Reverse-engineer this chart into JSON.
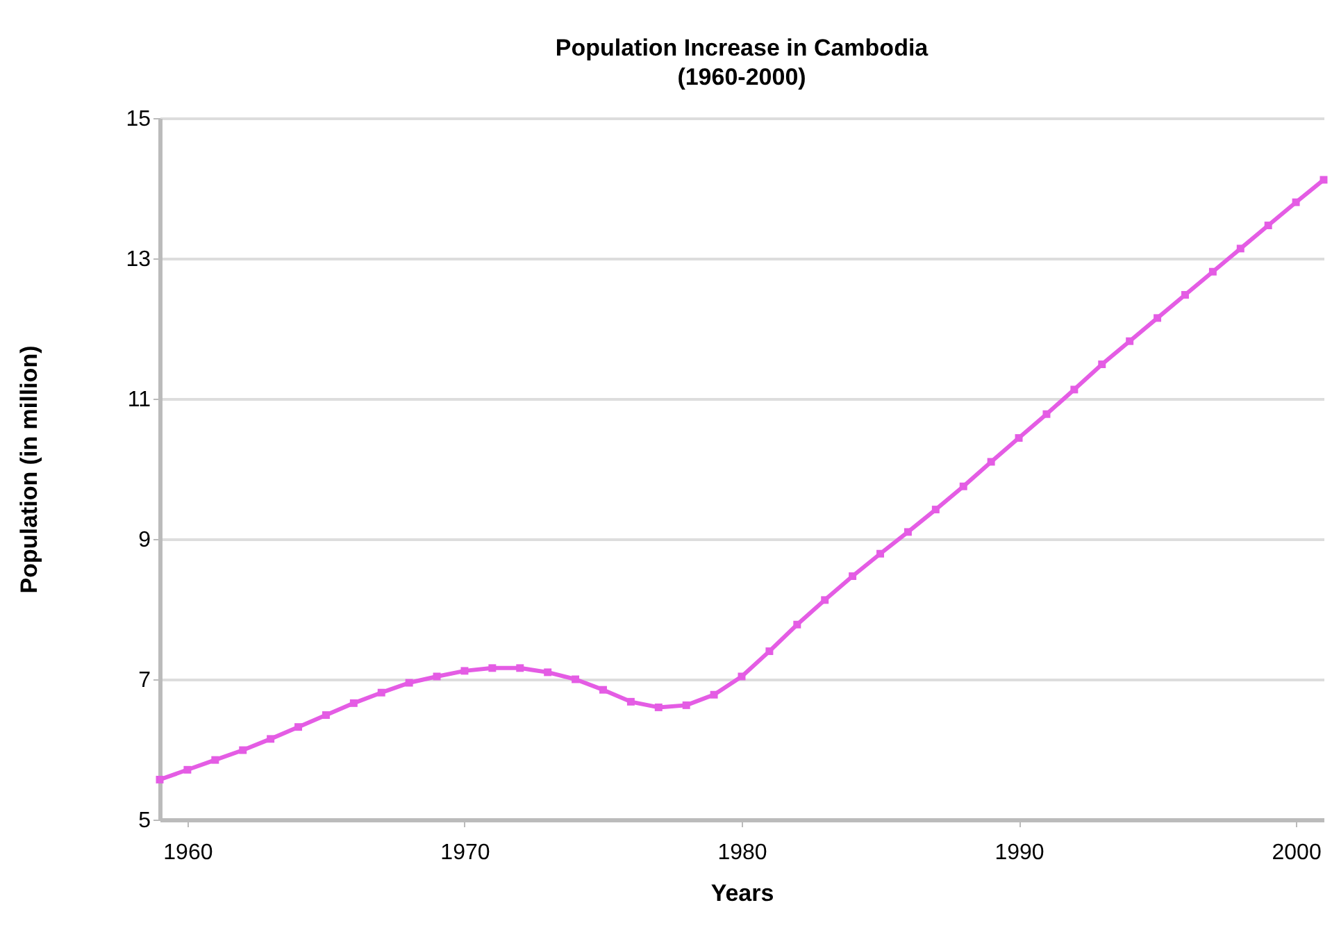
{
  "chart_data": {
    "type": "line",
    "title": "Population Increase in Cambodia",
    "subtitle": "(1960-2000)",
    "xlabel": "Years",
    "ylabel": "Population (in million)",
    "x": [
      1959,
      1960,
      1961,
      1962,
      1963,
      1964,
      1965,
      1966,
      1967,
      1968,
      1969,
      1970,
      1971,
      1972,
      1973,
      1974,
      1975,
      1976,
      1977,
      1978,
      1979,
      1980,
      1981,
      1982,
      1983,
      1984,
      1985,
      1986,
      1987,
      1988,
      1989,
      1990,
      1991,
      1992,
      1993,
      1994,
      1995,
      1996,
      1997,
      1998,
      1999,
      2000,
      2001
    ],
    "series": [
      {
        "color": "#e45ce4",
        "values": [
          5.57,
          5.71,
          5.85,
          5.99,
          6.15,
          6.32,
          6.49,
          6.66,
          6.81,
          6.95,
          7.04,
          7.12,
          7.16,
          7.16,
          7.1,
          7.0,
          6.85,
          6.68,
          6.6,
          6.63,
          6.78,
          7.04,
          7.4,
          7.78,
          8.13,
          8.47,
          8.79,
          9.1,
          9.42,
          9.75,
          10.1,
          10.44,
          10.78,
          11.13,
          11.49,
          11.82,
          12.15,
          12.48,
          12.81,
          13.14,
          13.47,
          13.8,
          14.12
        ]
      }
    ],
    "xlim": [
      1959,
      2001
    ],
    "xticks": [
      1960,
      1970,
      1980,
      1990,
      2000
    ],
    "ylim": [
      5,
      15
    ],
    "yticks": [
      5,
      7,
      9,
      11,
      13,
      15
    ],
    "grid": "y",
    "marker": "square",
    "line_style": "solid"
  }
}
